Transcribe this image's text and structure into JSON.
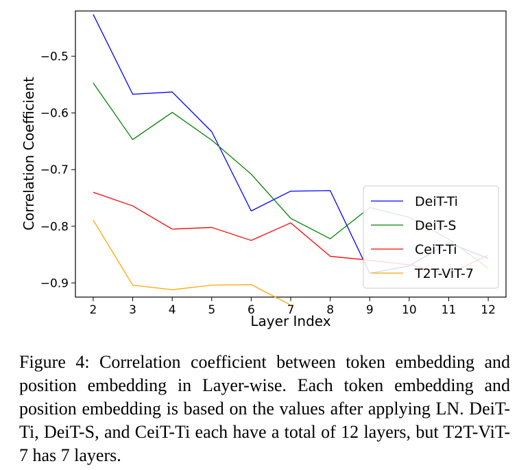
{
  "chart_data": {
    "type": "line",
    "xlabel": "Layer Index",
    "ylabel": "Correlation Coefficient",
    "xlim": [
      1.55,
      12.45
    ],
    "ylim": [
      -0.42,
      -0.925
    ],
    "y_inverted": true,
    "x_ticks": [
      2,
      3,
      4,
      5,
      6,
      7,
      8,
      9,
      10,
      11,
      12
    ],
    "x_tick_labels": [
      "2",
      "3",
      "4",
      "5",
      "6",
      "7",
      "8",
      "9",
      "10",
      "11",
      "12"
    ],
    "y_ticks": [
      -0.5,
      -0.6,
      -0.7,
      -0.8,
      -0.9
    ],
    "y_tick_labels": [
      "−0.5",
      "−0.6",
      "−0.7",
      "−0.8",
      "−0.9"
    ],
    "legend_position": "lower-right",
    "series": [
      {
        "name": "DeiT-Ti",
        "color": "#0000ff",
        "x": [
          2,
          3,
          4,
          5,
          6,
          7,
          8,
          9,
          10,
          11,
          12
        ],
        "y": [
          -0.426,
          -0.567,
          -0.563,
          -0.633,
          -0.773,
          -0.738,
          -0.737,
          -0.883,
          -0.87,
          -0.829,
          -0.857
        ]
      },
      {
        "name": "DeiT-S",
        "color": "#008000",
        "x": [
          2,
          3,
          4,
          5,
          6,
          7,
          8,
          9,
          10,
          11,
          12
        ],
        "y": [
          -0.547,
          -0.647,
          -0.599,
          -0.648,
          -0.708,
          -0.786,
          -0.822,
          -0.767,
          -0.784,
          -0.823,
          -0.874
        ]
      },
      {
        "name": "CeiT-Ti",
        "color": "#ff0000",
        "x": [
          2,
          3,
          4,
          5,
          6,
          7,
          8,
          9,
          10,
          11,
          12
        ],
        "y": [
          -0.74,
          -0.764,
          -0.805,
          -0.802,
          -0.825,
          -0.794,
          -0.853,
          -0.86,
          -0.868,
          -0.884,
          -0.851
        ]
      },
      {
        "name": "T2T-ViT-7",
        "color": "#ffa500",
        "x": [
          2,
          3,
          4,
          5,
          6,
          7
        ],
        "y": [
          -0.789,
          -0.904,
          -0.912,
          -0.904,
          -0.903,
          -0.939
        ]
      }
    ]
  },
  "caption": "Figure 4: Correlation coefficient between token embedding and position embedding in Layer-wise. Each token embedding and position embedding is based on the values after applying LN. DeiT-Ti, DeiT-S, and CeiT-Ti each have a total of 12 layers, but T2T-ViT-7 has 7 layers."
}
